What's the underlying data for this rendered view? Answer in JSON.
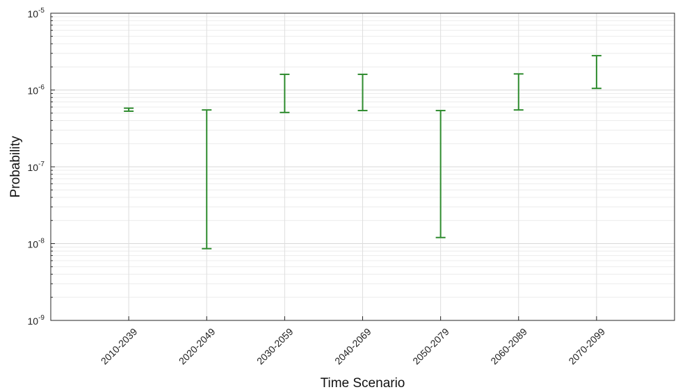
{
  "chart_data": {
    "type": "errorbar",
    "xlabel": "Time Scenario",
    "ylabel": "Probability",
    "yscale": "log",
    "ylim": [
      1e-09,
      1e-05
    ],
    "y_ticks": [
      {
        "value": 1e-09,
        "base": "10",
        "exp": "-9"
      },
      {
        "value": 1e-08,
        "base": "10",
        "exp": "-8"
      },
      {
        "value": 1e-07,
        "base": "10",
        "exp": "-7"
      },
      {
        "value": 1e-06,
        "base": "10",
        "exp": "-6"
      },
      {
        "value": 1e-05,
        "base": "10",
        "exp": "-5"
      }
    ],
    "grid": true,
    "bar_color": "#2e8b2e",
    "categories": [
      "2010-2039",
      "2020-2049",
      "2030-2059",
      "2040-2069",
      "2050-2079",
      "2060-2089",
      "2070-2099"
    ],
    "lower": [
      5.3e-07,
      8.6e-09,
      5.1e-07,
      5.4e-07,
      1.2e-08,
      5.5e-07,
      1.05e-06
    ],
    "upper": [
      5.8e-07,
      5.5e-07,
      1.6e-06,
      1.6e-06,
      5.4e-07,
      1.62e-06,
      2.8e-06
    ]
  }
}
